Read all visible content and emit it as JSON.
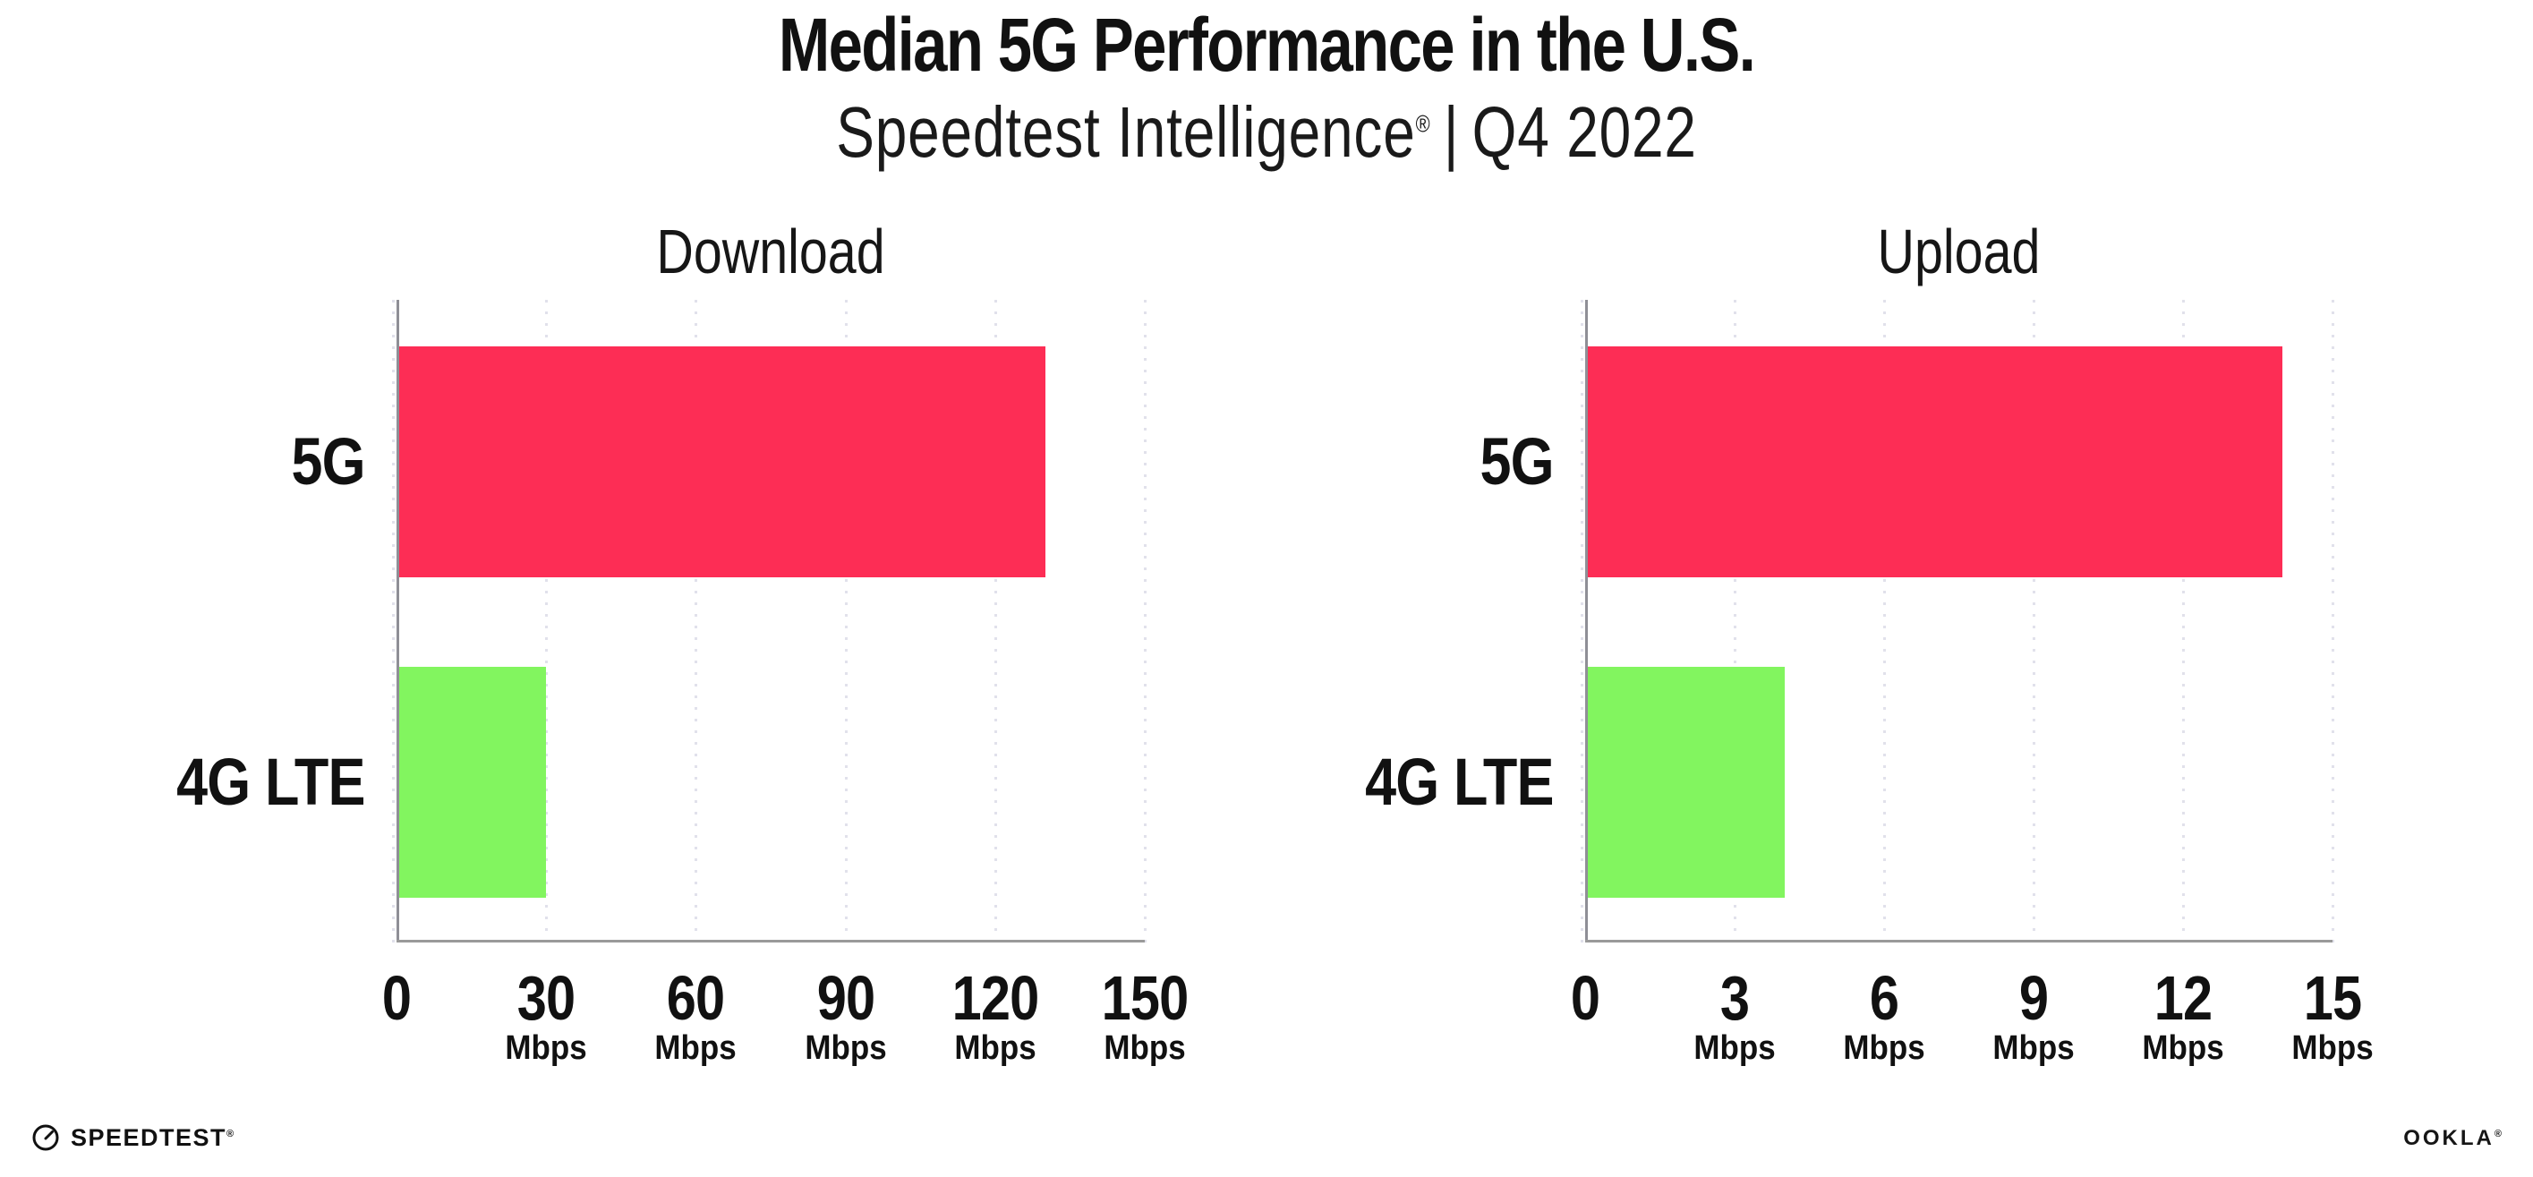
{
  "header": {
    "title": "Median 5G Performance in the U.S.",
    "subtitle": {
      "brand": "Speedtest Intelligence",
      "registered_mark": "®",
      "separator": "|",
      "period": "Q4 2022"
    }
  },
  "chart_data": [
    {
      "type": "bar",
      "orientation": "horizontal",
      "title": "Download",
      "categories": [
        "5G",
        "4G LTE"
      ],
      "values": [
        130,
        30
      ],
      "value_unit": "Mbps",
      "xlim": [
        0,
        150
      ],
      "xticks": [
        0,
        30,
        60,
        90,
        120,
        150
      ],
      "tick_unit": "Mbps",
      "tick_unit_shown_for_zero": false,
      "series_colors": [
        "#fd2d55",
        "#82f55f"
      ],
      "grid": "dotted-vertical",
      "legend": "none"
    },
    {
      "type": "bar",
      "orientation": "horizontal",
      "title": "Upload",
      "categories": [
        "5G",
        "4G LTE"
      ],
      "values": [
        14,
        4
      ],
      "value_unit": "Mbps",
      "xlim": [
        0,
        15
      ],
      "xticks": [
        0,
        3,
        6,
        9,
        12,
        15
      ],
      "tick_unit": "Mbps",
      "tick_unit_shown_for_zero": false,
      "series_colors": [
        "#fd2d55",
        "#82f55f"
      ],
      "grid": "dotted-vertical",
      "legend": "none"
    }
  ],
  "colors": {
    "bar_5g": "#fd2d55",
    "bar_4g_lte": "#82f55f",
    "gridline": "#e1e1eb",
    "y_spine": "#8f8f96",
    "x_axis": "#9a9a9a",
    "text": "#111111",
    "background": "#ffffff"
  },
  "footer": {
    "speedtest_wordmark": "SPEEDTEST",
    "speedtest_mark": "®",
    "ookla_wordmark": "OOKLA",
    "ookla_mark": "®"
  }
}
